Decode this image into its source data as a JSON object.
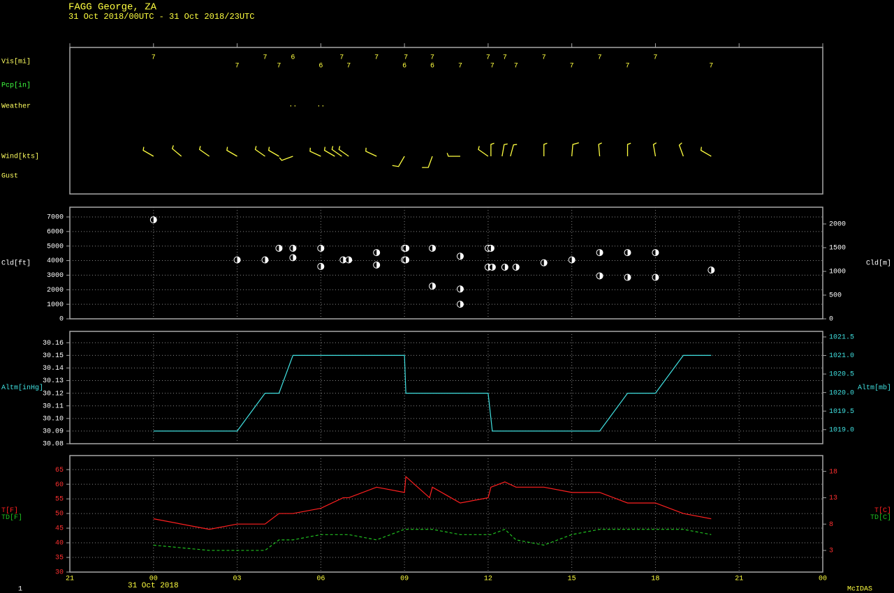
{
  "title": "FAGG  George,  ZA",
  "subtitle": "31 Oct 2018/00UTC - 31 Oct 2018/23UTC",
  "footer": {
    "page": "1",
    "date": "31 Oct 2018",
    "brand": "McIDAS"
  },
  "chart_data": [
    {
      "type": "station",
      "rows": [
        "Vis[mi]",
        "Pcp[in]",
        "Weather",
        "Wind[kts]",
        "Gust"
      ],
      "row_colors": [
        "#ffff60",
        "#40ff40",
        "#ffff60",
        "#ffff60",
        "#ffff60"
      ],
      "color": "#ffff40",
      "vis": {
        "x": [
          0,
          3,
          4,
          4.5,
          5,
          6,
          6.75,
          7,
          8,
          9,
          9.05,
          10,
          10,
          11,
          12,
          12.15,
          12.6,
          13,
          14,
          15,
          16,
          17,
          18,
          20
        ],
        "values": [
          7,
          7,
          7,
          7,
          6,
          6,
          7,
          7,
          7,
          6,
          7,
          6,
          7,
          7,
          7,
          7,
          7,
          7,
          7,
          7,
          7,
          7,
          7,
          7
        ]
      },
      "weather": {
        "x": [
          5,
          6
        ],
        "symbols": [
          "..",
          ".."
        ]
      },
      "wind": {
        "x": [
          0,
          1,
          2,
          3,
          4,
          4.5,
          5,
          6,
          6.5,
          6.75,
          7,
          8,
          9,
          10,
          11,
          12,
          12.1,
          12.5,
          12.8,
          14,
          15,
          16,
          17,
          18,
          19,
          20
        ],
        "direction": [
          300,
          310,
          305,
          300,
          305,
          300,
          250,
          295,
          300,
          305,
          305,
          295,
          210,
          200,
          270,
          305,
          360,
          10,
          15,
          360,
          5,
          355,
          360,
          350,
          340,
          300
        ],
        "speed": [
          5,
          5,
          5,
          5,
          5,
          5,
          5,
          5,
          5,
          5,
          5,
          5,
          10,
          10,
          5,
          5,
          5,
          5,
          5,
          5,
          10,
          5,
          5,
          5,
          5,
          5
        ]
      }
    },
    {
      "type": "scatter",
      "ylabel": "Cld[ft]",
      "y2label": "Cld[m]",
      "color": "#ffffff",
      "tick_color": "#ffffff",
      "y2tick_color": "#ffffff",
      "grid": true,
      "x": [
        0,
        3,
        4,
        4.5,
        5,
        5,
        6,
        6,
        6.8,
        7,
        8,
        8,
        9,
        9.05,
        9,
        9.05,
        10,
        10,
        11,
        11,
        11,
        12,
        12.1,
        12,
        12.15,
        12.6,
        13,
        14,
        15,
        16,
        16,
        17,
        17,
        18,
        18,
        20
      ],
      "values": [
        6800,
        4050,
        4050,
        4850,
        4850,
        4200,
        4850,
        3600,
        4050,
        4050,
        4550,
        3700,
        4850,
        4850,
        4050,
        4050,
        4850,
        2250,
        4300,
        2050,
        1000,
        4850,
        4850,
        3550,
        3550,
        3550,
        3550,
        3850,
        4050,
        4550,
        2950,
        4550,
        2850,
        4550,
        2850,
        3350
      ],
      "ylim": [
        0,
        7670
      ],
      "yticks": [
        0,
        1000,
        2000,
        3000,
        4000,
        5000,
        6000,
        7000
      ],
      "y2lim": [
        0,
        2353
      ],
      "y2ticks": [
        0,
        500,
        1000,
        1500,
        2000
      ]
    },
    {
      "type": "line",
      "y2label": "Altm[mb]",
      "tick_color": "#ffffff",
      "y2tick_color": "#40e0e0",
      "grid": true,
      "x": [
        0,
        3,
        4,
        4.5,
        5,
        9,
        9.05,
        12,
        12.15,
        16,
        17,
        18,
        19,
        20
      ],
      "series": [
        {
          "name": "Altm[inHg]",
          "color": "#40e0e0",
          "values": [
            30.09,
            30.09,
            30.12,
            30.12,
            30.15,
            30.15,
            30.12,
            30.12,
            30.09,
            30.09,
            30.12,
            30.12,
            30.15,
            30.15
          ]
        }
      ],
      "ylim": [
        30.08,
        30.169
      ],
      "yticks": [
        30.08,
        30.09,
        {
          "value": 30.1,
          "label": "30.10"
        },
        30.11,
        30.12,
        30.13,
        30.14,
        30.15,
        30.16
      ],
      "y2lim": [
        1018.62,
        1021.65
      ],
      "y2ticks": [
        {
          "value": 1019,
          "label": "1019.0"
        },
        1019.5,
        {
          "value": 1020,
          "label": "1020.0"
        },
        1020.5,
        {
          "value": 1021,
          "label": "1021.0"
        },
        1021.5
      ]
    },
    {
      "type": "line",
      "y2labels": [
        "T[C]",
        "TD[C]"
      ],
      "tick_color": "#ff3030",
      "y2tick_color": "#ff3030",
      "grid": true,
      "x": [
        0,
        2,
        3,
        4,
        4.5,
        5,
        6,
        6.8,
        7,
        8,
        9,
        9.05,
        9.9,
        10,
        11,
        12,
        12.1,
        12.6,
        13,
        14,
        15,
        16,
        17,
        18,
        19,
        20
      ],
      "series": [
        {
          "name": "T[F]",
          "color": "#ff2020",
          "values": [
            48.2,
            44.6,
            46.4,
            46.4,
            50,
            50,
            51.8,
            55.4,
            55.4,
            59,
            57.2,
            62.6,
            55.4,
            59,
            53.6,
            55.4,
            59,
            60.8,
            59,
            59,
            57.2,
            57.2,
            53.6,
            53.6,
            50,
            48.2
          ]
        },
        {
          "name": "TD[F]",
          "color": "#20c020",
          "dashed": true,
          "values": [
            39.2,
            37.4,
            37.4,
            37.4,
            41,
            41,
            42.8,
            42.8,
            42.8,
            41,
            44.6,
            44.6,
            44.6,
            44.6,
            42.8,
            42.8,
            42.8,
            44.6,
            41,
            39.2,
            42.8,
            44.6,
            44.6,
            44.6,
            44.6,
            42.8
          ]
        }
      ],
      "ylim": [
        30,
        69.8
      ],
      "yticks": [
        30,
        35,
        40,
        45,
        50,
        55,
        60,
        65
      ],
      "y2lim": [
        -1.1,
        21
      ],
      "y2ticks": [
        3,
        8,
        13,
        18
      ],
      "xlim": [
        -3,
        24
      ],
      "xticks": [
        {
          "value": -3,
          "label": "21"
        },
        {
          "value": 0,
          "label": "00"
        },
        {
          "value": 3,
          "label": "03"
        },
        {
          "value": 6,
          "label": "06"
        },
        {
          "value": 9,
          "label": "09"
        },
        12,
        15,
        18,
        21,
        {
          "value": 24,
          "label": "00"
        }
      ]
    }
  ]
}
